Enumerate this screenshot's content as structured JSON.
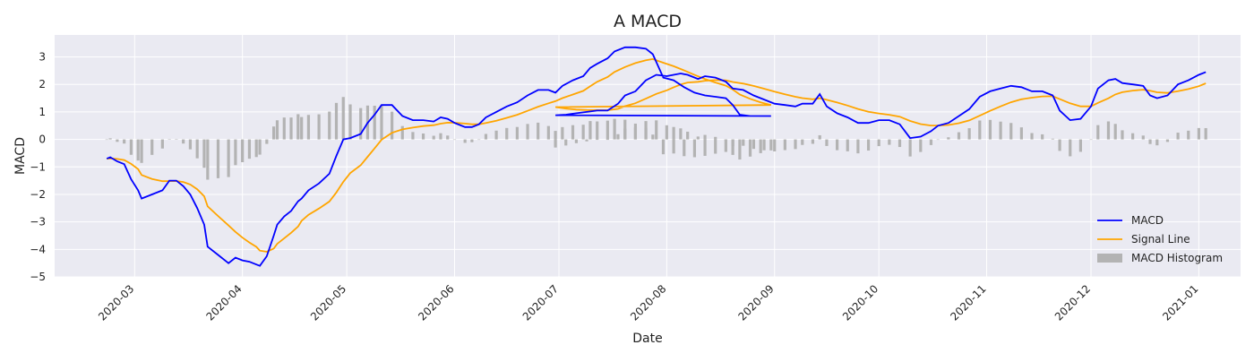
{
  "chart_data": {
    "type": "line",
    "title": "A MACD",
    "xlabel": "Date",
    "ylabel": "MACD",
    "ylim": [
      -5,
      3.8
    ],
    "xlim": [
      "2020-02-07",
      "2021-01-13"
    ],
    "yticks": [
      -5,
      -4,
      -3,
      -2,
      -1,
      0,
      1,
      2,
      3
    ],
    "yticklabels": [
      "−5",
      "−4",
      "−3",
      "−2",
      "−1",
      "0",
      "1",
      "2",
      "3"
    ],
    "xticks": [
      "2020-03-01",
      "2020-04-01",
      "2020-05-01",
      "2020-06-01",
      "2020-07-01",
      "2020-08-01",
      "2020-09-01",
      "2020-10-01",
      "2020-11-01",
      "2020-12-01",
      "2021-01-01"
    ],
    "xticklabels": [
      "2020-03",
      "2020-04",
      "2020-05",
      "2020-06",
      "2020-07",
      "2020-08",
      "2020-09",
      "2020-10",
      "2020-11",
      "2020-12",
      "2021-01"
    ],
    "grid": true,
    "legend_position": "lower-right",
    "colors": {
      "background": "#eaeaf2",
      "grid": "#ffffff",
      "macd": "#0000ff",
      "signal": "#ffa500",
      "histogram": "#b3b3b3"
    },
    "series": [
      {
        "name": "MACD",
        "kind": "line",
        "points": [
          [
            "2020-02-22",
            -0.7
          ],
          [
            "2020-02-23",
            -0.65
          ],
          [
            "2020-02-25",
            -0.8
          ],
          [
            "2020-02-27",
            -0.9
          ],
          [
            "2020-02-29",
            -1.45
          ],
          [
            "2020-03-02",
            -1.85
          ],
          [
            "2020-03-03",
            -2.15
          ],
          [
            "2020-03-06",
            -2.0
          ],
          [
            "2020-03-09",
            -1.85
          ],
          [
            "2020-03-11",
            -1.5
          ],
          [
            "2020-03-13",
            -1.5
          ],
          [
            "2020-03-15",
            -1.7
          ],
          [
            "2020-03-17",
            -2.0
          ],
          [
            "2020-03-19",
            -2.5
          ],
          [
            "2020-03-21",
            -3.1
          ],
          [
            "2020-03-22",
            -3.9
          ],
          [
            "2020-03-25",
            -4.2
          ],
          [
            "2020-03-28",
            -4.5
          ],
          [
            "2020-03-30",
            -4.3
          ],
          [
            "2020-04-01",
            -4.4
          ],
          [
            "2020-04-03",
            -4.45
          ],
          [
            "2020-04-05",
            -4.55
          ],
          [
            "2020-04-06",
            -4.6
          ],
          [
            "2020-04-08",
            -4.25
          ],
          [
            "2020-04-10",
            -3.5
          ],
          [
            "2020-04-11",
            -3.1
          ],
          [
            "2020-04-13",
            -2.8
          ],
          [
            "2020-04-15",
            -2.6
          ],
          [
            "2020-04-17",
            -2.25
          ],
          [
            "2020-04-18",
            -2.15
          ],
          [
            "2020-04-20",
            -1.85
          ],
          [
            "2020-04-23",
            -1.6
          ],
          [
            "2020-04-26",
            -1.25
          ],
          [
            "2020-04-28",
            -0.6
          ],
          [
            "2020-04-30",
            0.0
          ],
          [
            "2020-05-02",
            0.05
          ],
          [
            "2020-05-05",
            0.2
          ],
          [
            "2020-05-07",
            0.6
          ],
          [
            "2020-05-09",
            0.9
          ],
          [
            "2020-05-11",
            1.25
          ],
          [
            "2020-05-14",
            1.25
          ],
          [
            "2020-05-17",
            0.85
          ],
          [
            "2020-05-20",
            0.7
          ],
          [
            "2020-05-23",
            0.7
          ],
          [
            "2020-05-26",
            0.65
          ],
          [
            "2020-05-28",
            0.8
          ],
          [
            "2020-05-30",
            0.75
          ],
          [
            "2020-06-01",
            0.6
          ],
          [
            "2020-06-04",
            0.45
          ],
          [
            "2020-06-06",
            0.45
          ],
          [
            "2020-06-08",
            0.55
          ],
          [
            "2020-06-10",
            0.8
          ],
          [
            "2020-06-13",
            1.0
          ],
          [
            "2020-06-16",
            1.2
          ],
          [
            "2020-06-19",
            1.35
          ],
          [
            "2020-06-22",
            1.6
          ],
          [
            "2020-06-25",
            1.8
          ],
          [
            "2020-06-28",
            1.8
          ],
          [
            "2020-06-30",
            1.7
          ],
          [
            "2020-07-02",
            1.95
          ],
          [
            "2020-07-05",
            2.15
          ],
          [
            "2020-07-08",
            2.3
          ],
          [
            "2020-07-10",
            2.6
          ],
          [
            "2020-07-12",
            2.75
          ],
          [
            "2020-07-15",
            2.95
          ],
          [
            "2020-07-17",
            3.2
          ],
          [
            "2020-07-20",
            3.35
          ],
          [
            "2020-07-23",
            3.35
          ],
          [
            "2020-07-26",
            3.3
          ],
          [
            "2020-07-28",
            3.1
          ],
          [
            "2020-07-31",
            2.25
          ],
          [
            "2020-08-03",
            2.15
          ],
          [
            "2020-08-06",
            1.9
          ],
          [
            "2020-08-09",
            1.7
          ],
          [
            "2020-08-12",
            1.6
          ],
          [
            "2020-08-15",
            1.55
          ],
          [
            "2020-08-18",
            1.5
          ],
          [
            "2020-08-20",
            1.25
          ],
          [
            "2020-08-22",
            0.9
          ],
          [
            "2020-08-25",
            0.85
          ],
          [
            "2020-08-28",
            0.85
          ],
          [
            "2020-08-31",
            0.85
          ],
          [
            "2020-06-30",
            0.88
          ],
          [
            "2020-07-03",
            0.9
          ],
          [
            "2020-07-06",
            0.95
          ],
          [
            "2020-07-09",
            1.0
          ],
          [
            "2020-07-12",
            1.05
          ],
          [
            "2020-07-15",
            1.05
          ],
          [
            "2020-07-18",
            1.3
          ],
          [
            "2020-07-20",
            1.6
          ],
          [
            "2020-07-23",
            1.75
          ],
          [
            "2020-07-26",
            2.15
          ],
          [
            "2020-07-29",
            2.35
          ],
          [
            "2020-08-01",
            2.3
          ],
          [
            "2020-08-03",
            2.35
          ],
          [
            "2020-08-05",
            2.4
          ],
          [
            "2020-08-07",
            2.35
          ],
          [
            "2020-08-10",
            2.2
          ],
          [
            "2020-08-12",
            2.3
          ],
          [
            "2020-08-15",
            2.25
          ],
          [
            "2020-08-18",
            2.1
          ],
          [
            "2020-08-20",
            1.85
          ],
          [
            "2020-08-23",
            1.8
          ],
          [
            "2020-08-26",
            1.6
          ],
          [
            "2020-08-29",
            1.45
          ],
          [
            "2020-09-01",
            1.3
          ],
          [
            "2020-09-04",
            1.25
          ],
          [
            "2020-09-07",
            1.2
          ],
          [
            "2020-09-09",
            1.3
          ],
          [
            "2020-09-12",
            1.3
          ],
          [
            "2020-09-14",
            1.65
          ],
          [
            "2020-09-16",
            1.2
          ],
          [
            "2020-09-19",
            0.95
          ],
          [
            "2020-09-22",
            0.8
          ],
          [
            "2020-09-25",
            0.6
          ],
          [
            "2020-09-28",
            0.6
          ],
          [
            "2020-10-01",
            0.7
          ],
          [
            "2020-10-04",
            0.7
          ],
          [
            "2020-10-07",
            0.55
          ],
          [
            "2020-10-10",
            0.05
          ],
          [
            "2020-10-13",
            0.1
          ],
          [
            "2020-10-16",
            0.3
          ],
          [
            "2020-10-18",
            0.5
          ],
          [
            "2020-10-21",
            0.6
          ],
          [
            "2020-10-24",
            0.85
          ],
          [
            "2020-10-27",
            1.1
          ],
          [
            "2020-10-30",
            1.55
          ],
          [
            "2020-11-02",
            1.75
          ],
          [
            "2020-11-05",
            1.85
          ],
          [
            "2020-11-08",
            1.95
          ],
          [
            "2020-11-11",
            1.9
          ],
          [
            "2020-11-14",
            1.75
          ],
          [
            "2020-11-17",
            1.75
          ],
          [
            "2020-11-20",
            1.6
          ],
          [
            "2020-11-22",
            1.05
          ],
          [
            "2020-11-25",
            0.7
          ],
          [
            "2020-11-28",
            0.75
          ],
          [
            "2020-12-01",
            1.2
          ],
          [
            "2020-12-03",
            1.85
          ],
          [
            "2020-12-06",
            2.15
          ],
          [
            "2020-12-08",
            2.2
          ],
          [
            "2020-12-10",
            2.05
          ],
          [
            "2020-12-13",
            2.0
          ],
          [
            "2020-12-16",
            1.95
          ],
          [
            "2020-12-18",
            1.6
          ],
          [
            "2020-12-20",
            1.5
          ],
          [
            "2020-12-23",
            1.6
          ],
          [
            "2020-12-26",
            2.0
          ],
          [
            "2020-12-29",
            2.15
          ],
          [
            "2021-01-01",
            2.35
          ],
          [
            "2021-01-03",
            2.45
          ]
        ]
      }
    ]
  }
}
